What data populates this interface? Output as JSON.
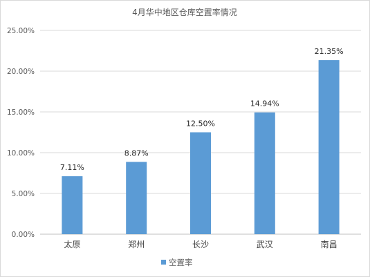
{
  "chart_data": {
    "type": "bar",
    "title": "4月华中地区仓库空置率情况",
    "xlabel": "",
    "ylabel": "",
    "categories": [
      "太原",
      "郑州",
      "长沙",
      "武汉",
      "南昌"
    ],
    "series": [
      {
        "name": "空置率",
        "values": [
          7.11,
          8.87,
          12.5,
          14.94,
          21.35
        ],
        "data_labels": [
          "7.11%",
          "8.87%",
          "12.50%",
          "14.94%",
          "21.35%"
        ]
      }
    ],
    "ylim": [
      0,
      25
    ],
    "y_ticks": [
      0,
      5,
      10,
      15,
      20,
      25
    ],
    "y_tick_labels": [
      "0.00%",
      "5.00%",
      "10.00%",
      "15.00%",
      "20.00%",
      "25.00%"
    ],
    "grid": true,
    "legend": "bottom",
    "colors": {
      "bar": "#5b9bd5",
      "grid": "#d9d9d9",
      "text": "#595959"
    }
  }
}
